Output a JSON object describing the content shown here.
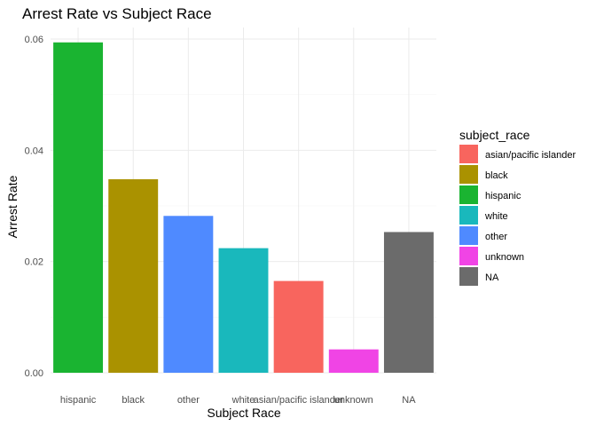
{
  "chart_data": {
    "type": "bar",
    "title": "Arrest Rate vs Subject Race",
    "xlabel": "Subject Race",
    "ylabel": "Arrest Rate",
    "categories": [
      "hispanic",
      "black",
      "other",
      "white",
      "asian/pacific islander",
      "unknown",
      "NA"
    ],
    "values": [
      0.0594,
      0.0348,
      0.0282,
      0.0224,
      0.0165,
      0.0042,
      0.0253
    ],
    "bar_colors": [
      "#1AB431",
      "#AA9200",
      "#4F8AFF",
      "#19B8BC",
      "#F8655E",
      "#F044E5",
      "#6B6B6B"
    ],
    "ylim": [
      0,
      0.06
    ],
    "yticks": [
      "0.00",
      "0.02",
      "0.04",
      "0.06"
    ],
    "grid": true,
    "legend": {
      "title": "subject_race",
      "placement": "right",
      "items": [
        {
          "label": "asian/pacific islander",
          "color": "#F8655E"
        },
        {
          "label": "black",
          "color": "#AA9200"
        },
        {
          "label": "hispanic",
          "color": "#1AB431"
        },
        {
          "label": "white",
          "color": "#19B8BC"
        },
        {
          "label": "other",
          "color": "#4F8AFF"
        },
        {
          "label": "unknown",
          "color": "#F044E5"
        },
        {
          "label": "NA",
          "color": "#6B6B6B"
        }
      ]
    }
  }
}
